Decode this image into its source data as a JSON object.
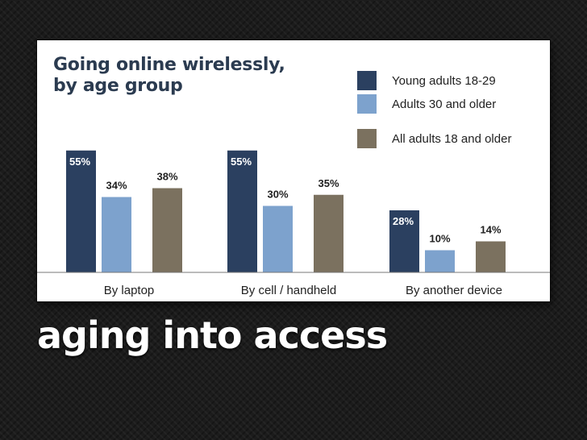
{
  "caption": "aging into access",
  "colors": {
    "young": "#2b4060",
    "adults30": "#7da2cd",
    "all": "#7b715f",
    "axis": "#777777"
  },
  "chart_data": {
    "type": "bar",
    "title_lines": [
      "Going online wirelessly,",
      "by age group"
    ],
    "categories": [
      "By laptop",
      "By cell / handheld",
      "By another device"
    ],
    "series": [
      {
        "name": "Young adults 18-29",
        "values": [
          55,
          55,
          28
        ],
        "labels": [
          "55%",
          "55%",
          "28%"
        ]
      },
      {
        "name": "Adults 30 and older",
        "values": [
          34,
          30,
          10
        ],
        "labels": [
          "34%",
          "30%",
          "10%"
        ]
      },
      {
        "name": "All adults 18 and older",
        "values": [
          38,
          35,
          14
        ],
        "labels": [
          "38%",
          "35%",
          "14%"
        ]
      }
    ],
    "ylim": [
      0,
      60
    ],
    "xlabel": "",
    "ylabel": "",
    "grid": false,
    "legend_position": "top-right"
  }
}
